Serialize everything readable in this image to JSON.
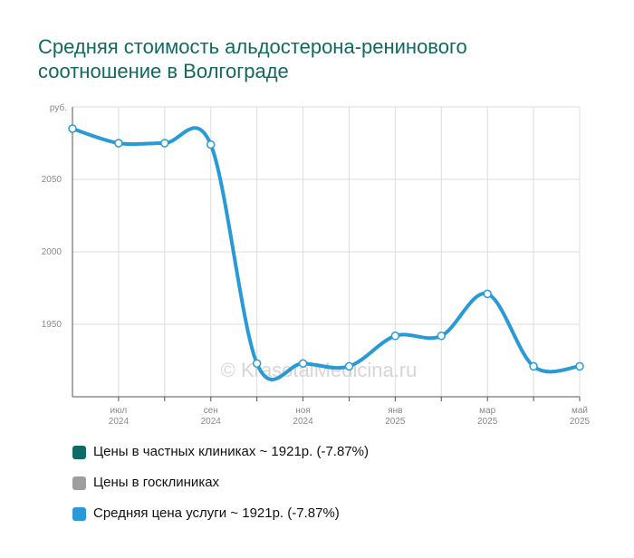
{
  "title_lines": [
    "Средняя стоимость альдостерона-ренинового",
    "соотношение в Волгограде"
  ],
  "watermark": "© KrasotaiMedicina.ru",
  "colors": {
    "title": "#11695f",
    "private": "#0f6b63",
    "public": "#9e9e9e",
    "average": "#2a9ad6",
    "grid": "#dddddd"
  },
  "legend": [
    {
      "label": "Цены в частных клиниках ~ 1921р. (-7.87%)",
      "color": "#0f6b63"
    },
    {
      "label": "Цены в госклиниках",
      "color": "#9e9e9e"
    },
    {
      "label": "Средняя цена услуги ~ 1921р. (-7.87%)",
      "color": "#2a9ad6"
    }
  ],
  "chart_data": {
    "type": "line",
    "y_unit_label": "руб.",
    "ylim": [
      1900,
      2100
    ],
    "y_ticks": [
      1950,
      2000,
      2050
    ],
    "x_tick_labels": [
      {
        "month": "июл",
        "year": "2024",
        "index": 1
      },
      {
        "month": "сен",
        "year": "2024",
        "index": 3
      },
      {
        "month": "ноя",
        "year": "2024",
        "index": 5
      },
      {
        "month": "янв",
        "year": "2025",
        "index": 7
      },
      {
        "month": "мар",
        "year": "2025",
        "index": 9
      },
      {
        "month": "май",
        "year": "2025",
        "index": 11
      }
    ],
    "x": [
      "2024-06",
      "2024-07",
      "2024-08",
      "2024-09",
      "2024-10",
      "2024-11",
      "2024-12",
      "2025-01",
      "2025-02",
      "2025-03",
      "2025-04",
      "2025-05"
    ],
    "series": [
      {
        "name": "Цены в частных клиниках",
        "values": [
          2085,
          2075,
          2075,
          2074,
          1923,
          1923,
          1921,
          1942,
          1942,
          1971,
          1921,
          1921
        ]
      },
      {
        "name": "Средняя цена услуги",
        "values": [
          2085,
          2075,
          2075,
          2074,
          1923,
          1923,
          1921,
          1942,
          1942,
          1971,
          1921,
          1921
        ]
      }
    ],
    "grid": true
  }
}
